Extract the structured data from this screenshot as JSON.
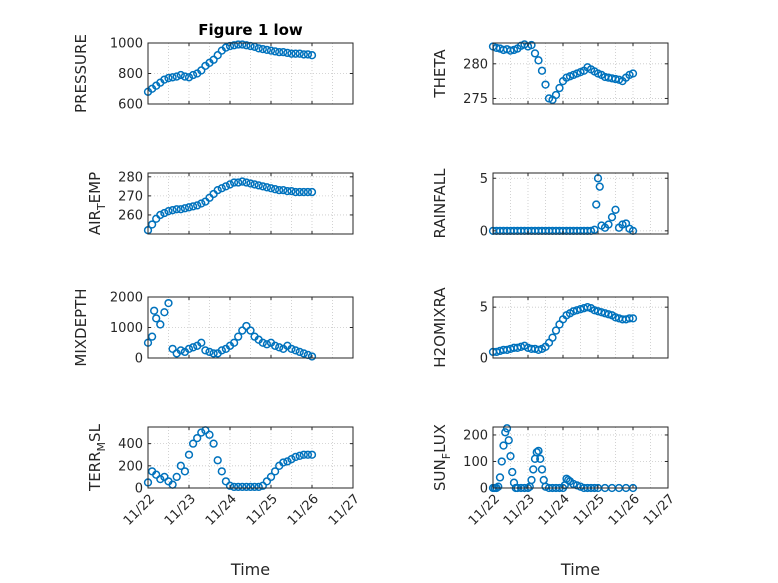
{
  "figure": {
    "title": "Figure 1 low",
    "marker_color": "#0072BD"
  },
  "chart_data": [
    {
      "type": "scatter",
      "title": "Figure 1 low",
      "ylabel": "PRESSURE",
      "ylabel_sub": null,
      "xlim": [
        0,
        5
      ],
      "ylim": [
        600,
        1000
      ],
      "yticks": [
        600,
        800,
        1000
      ],
      "ytick_labels": [
        "600",
        "800",
        "1000"
      ],
      "xticks": [
        0,
        1,
        2,
        3,
        4,
        5
      ],
      "xtick_labels": [],
      "xlabel": "",
      "grid": true,
      "series": [
        {
          "x": [
            0.0,
            0.1,
            0.2,
            0.3,
            0.4,
            0.5,
            0.6,
            0.7,
            0.8,
            0.9,
            1.0,
            1.1,
            1.2,
            1.3,
            1.4,
            1.5,
            1.6,
            1.7,
            1.8,
            1.9,
            2.0,
            2.1,
            2.2,
            2.3,
            2.4,
            2.5,
            2.6,
            2.7,
            2.8,
            2.9,
            3.0,
            3.1,
            3.2,
            3.3,
            3.4,
            3.5,
            3.6,
            3.7,
            3.8,
            3.9,
            4.0
          ],
          "y": [
            680,
            700,
            720,
            740,
            760,
            770,
            775,
            780,
            790,
            780,
            775,
            790,
            800,
            820,
            850,
            870,
            890,
            920,
            950,
            970,
            980,
            985,
            990,
            990,
            985,
            980,
            975,
            965,
            960,
            955,
            950,
            945,
            940,
            940,
            935,
            930,
            930,
            930,
            925,
            925,
            920
          ]
        }
      ]
    },
    {
      "type": "scatter",
      "title": "",
      "ylabel": "THETA",
      "ylabel_sub": null,
      "xlim": [
        0,
        5
      ],
      "ylim": [
        274.2,
        283
      ],
      "yticks": [
        275,
        280
      ],
      "ytick_labels": [
        "275",
        "280"
      ],
      "xticks": [
        0,
        1,
        2,
        3,
        4,
        5
      ],
      "xtick_labels": [],
      "xlabel": "",
      "grid": true,
      "series": [
        {
          "x": [
            0.0,
            0.1,
            0.2,
            0.3,
            0.4,
            0.5,
            0.6,
            0.7,
            0.8,
            0.9,
            1.0,
            1.1,
            1.2,
            1.3,
            1.4,
            1.5,
            1.6,
            1.7,
            1.8,
            1.9,
            2.0,
            2.1,
            2.2,
            2.3,
            2.4,
            2.5,
            2.6,
            2.7,
            2.8,
            2.9,
            3.0,
            3.1,
            3.2,
            3.3,
            3.4,
            3.5,
            3.6,
            3.7,
            3.8,
            3.9,
            4.0
          ],
          "y": [
            282.5,
            282.3,
            282.2,
            282.0,
            282.1,
            281.9,
            282.0,
            282.2,
            282.6,
            282.8,
            282.5,
            282.7,
            281.5,
            280.5,
            279.0,
            277.0,
            275.0,
            274.8,
            275.5,
            276.5,
            277.5,
            278.0,
            278.2,
            278.4,
            278.6,
            278.8,
            279.0,
            279.5,
            279.2,
            278.9,
            278.6,
            278.4,
            278.1,
            278.0,
            277.9,
            277.8,
            277.7,
            277.5,
            278.0,
            278.4,
            278.6
          ]
        }
      ]
    },
    {
      "type": "scatter",
      "title": "",
      "ylabel": "AIR",
      "ylabel_sub": "T",
      "ylabel_rest": "EMP",
      "xlim": [
        0,
        5
      ],
      "ylim": [
        250,
        282
      ],
      "yticks": [
        260,
        270,
        280
      ],
      "ytick_labels": [
        "260",
        "270",
        "280"
      ],
      "xticks": [
        0,
        1,
        2,
        3,
        4,
        5
      ],
      "xtick_labels": [],
      "xlabel": "",
      "grid": true,
      "series": [
        {
          "x": [
            0.0,
            0.1,
            0.2,
            0.3,
            0.4,
            0.5,
            0.6,
            0.7,
            0.8,
            0.9,
            1.0,
            1.1,
            1.2,
            1.3,
            1.4,
            1.5,
            1.6,
            1.7,
            1.8,
            1.9,
            2.0,
            2.1,
            2.2,
            2.3,
            2.4,
            2.5,
            2.6,
            2.7,
            2.8,
            2.9,
            3.0,
            3.1,
            3.2,
            3.3,
            3.4,
            3.5,
            3.6,
            3.7,
            3.8,
            3.9,
            4.0
          ],
          "y": [
            252,
            255,
            258,
            260,
            261,
            262,
            262.5,
            263,
            263,
            263.5,
            264,
            264.5,
            265,
            266,
            267,
            269,
            271,
            273,
            274,
            275,
            276,
            277,
            277,
            277.5,
            277,
            276.5,
            276,
            275.5,
            275,
            274.5,
            274,
            273.5,
            273,
            273,
            272.5,
            272.5,
            272,
            272,
            272,
            272,
            272
          ]
        }
      ]
    },
    {
      "type": "scatter",
      "title": "",
      "ylabel": "RAINFALL",
      "ylabel_sub": null,
      "xlim": [
        0,
        5
      ],
      "ylim": [
        -0.3,
        5.5
      ],
      "yticks": [
        0,
        5
      ],
      "ytick_labels": [
        "0",
        "5"
      ],
      "xticks": [
        0,
        1,
        2,
        3,
        4,
        5
      ],
      "xtick_labels": [],
      "xlabel": "",
      "grid": true,
      "series": [
        {
          "x": [
            0.0,
            0.1,
            0.2,
            0.3,
            0.4,
            0.5,
            0.6,
            0.7,
            0.8,
            0.9,
            1.0,
            1.1,
            1.2,
            1.3,
            1.4,
            1.5,
            1.6,
            1.7,
            1.8,
            1.9,
            2.0,
            2.1,
            2.2,
            2.3,
            2.4,
            2.5,
            2.6,
            2.7,
            2.8,
            2.9,
            2.95,
            3.0,
            3.05,
            3.1,
            3.2,
            3.3,
            3.4,
            3.5,
            3.6,
            3.7,
            3.8,
            3.9,
            4.0
          ],
          "y": [
            0,
            0,
            0,
            0,
            0,
            0,
            0,
            0,
            0,
            0,
            0,
            0,
            0,
            0,
            0,
            0,
            0,
            0,
            0,
            0,
            0,
            0,
            0,
            0,
            0,
            0,
            0,
            0,
            0,
            0.1,
            2.5,
            5.0,
            4.2,
            0.5,
            0.3,
            0.6,
            1.3,
            2.0,
            0.3,
            0.6,
            0.7,
            0.2,
            0
          ]
        }
      ]
    },
    {
      "type": "scatter",
      "title": "",
      "ylabel": "MIXDEPTH",
      "ylabel_sub": null,
      "xlim": [
        0,
        5
      ],
      "ylim": [
        0,
        2000
      ],
      "yticks": [
        0,
        1000,
        2000
      ],
      "ytick_labels": [
        "0",
        "1000",
        "2000"
      ],
      "xticks": [
        0,
        1,
        2,
        3,
        4,
        5
      ],
      "xtick_labels": [],
      "xlabel": "",
      "grid": true,
      "series": [
        {
          "x": [
            0.0,
            0.1,
            0.15,
            0.2,
            0.3,
            0.4,
            0.5,
            0.6,
            0.7,
            0.8,
            0.9,
            1.0,
            1.1,
            1.2,
            1.3,
            1.4,
            1.5,
            1.6,
            1.7,
            1.8,
            1.9,
            2.0,
            2.1,
            2.2,
            2.3,
            2.4,
            2.5,
            2.6,
            2.7,
            2.8,
            2.9,
            3.0,
            3.1,
            3.2,
            3.3,
            3.4,
            3.5,
            3.6,
            3.7,
            3.8,
            3.9,
            4.0
          ],
          "y": [
            500,
            700,
            1550,
            1300,
            1100,
            1500,
            1800,
            300,
            150,
            250,
            200,
            300,
            350,
            400,
            500,
            250,
            200,
            150,
            150,
            250,
            300,
            400,
            500,
            700,
            900,
            1050,
            900,
            700,
            600,
            500,
            450,
            500,
            400,
            350,
            300,
            400,
            300,
            250,
            200,
            150,
            100,
            50
          ]
        }
      ]
    },
    {
      "type": "scatter",
      "title": "",
      "ylabel": "H2OMIXRA",
      "ylabel_sub": null,
      "xlim": [
        0,
        5
      ],
      "ylim": [
        0,
        6
      ],
      "yticks": [
        0,
        5
      ],
      "ytick_labels": [
        "0",
        "5"
      ],
      "xticks": [
        0,
        1,
        2,
        3,
        4,
        5
      ],
      "xtick_labels": [],
      "xlabel": "",
      "grid": true,
      "series": [
        {
          "x": [
            0.0,
            0.1,
            0.2,
            0.3,
            0.4,
            0.5,
            0.6,
            0.7,
            0.8,
            0.9,
            1.0,
            1.1,
            1.2,
            1.3,
            1.4,
            1.5,
            1.6,
            1.7,
            1.8,
            1.9,
            2.0,
            2.1,
            2.2,
            2.3,
            2.4,
            2.5,
            2.6,
            2.7,
            2.8,
            2.9,
            3.0,
            3.1,
            3.2,
            3.3,
            3.4,
            3.5,
            3.6,
            3.7,
            3.8,
            3.9,
            4.0
          ],
          "y": [
            0.6,
            0.6,
            0.7,
            0.8,
            0.8,
            0.9,
            1.0,
            1.0,
            1.1,
            1.2,
            1.0,
            0.9,
            0.9,
            0.8,
            0.9,
            1.1,
            1.5,
            2.0,
            2.7,
            3.3,
            3.8,
            4.2,
            4.4,
            4.6,
            4.7,
            4.8,
            4.9,
            5.0,
            4.9,
            4.7,
            4.6,
            4.5,
            4.4,
            4.3,
            4.2,
            4.0,
            3.9,
            3.8,
            3.8,
            3.9,
            3.9
          ]
        }
      ]
    },
    {
      "type": "scatter",
      "title": "",
      "ylabel": "TERR",
      "ylabel_sub": "M",
      "ylabel_rest": "SL",
      "xlim": [
        0,
        5
      ],
      "ylim": [
        0,
        550
      ],
      "yticks": [
        0,
        200,
        400
      ],
      "ytick_labels": [
        "0",
        "200",
        "400"
      ],
      "xticks": [
        0,
        1,
        2,
        3,
        4,
        5
      ],
      "xtick_labels": [
        "11/22",
        "11/23",
        "11/24",
        "11/25",
        "11/26",
        "11/27"
      ],
      "xlabel": "Time",
      "grid": true,
      "series": [
        {
          "x": [
            0.0,
            0.1,
            0.2,
            0.3,
            0.4,
            0.5,
            0.6,
            0.7,
            0.8,
            0.9,
            1.0,
            1.1,
            1.2,
            1.3,
            1.4,
            1.5,
            1.6,
            1.7,
            1.8,
            1.9,
            2.0,
            2.1,
            2.2,
            2.3,
            2.4,
            2.5,
            2.6,
            2.7,
            2.8,
            2.9,
            3.0,
            3.1,
            3.2,
            3.3,
            3.4,
            3.5,
            3.6,
            3.7,
            3.8,
            3.9,
            4.0
          ],
          "y": [
            50,
            150,
            120,
            80,
            100,
            60,
            30,
            100,
            200,
            150,
            300,
            400,
            450,
            500,
            520,
            480,
            400,
            250,
            150,
            60,
            20,
            10,
            10,
            10,
            10,
            10,
            10,
            10,
            20,
            60,
            100,
            150,
            200,
            230,
            240,
            260,
            280,
            290,
            300,
            300,
            300
          ]
        }
      ]
    },
    {
      "type": "scatter",
      "title": "",
      "ylabel": "SUN",
      "ylabel_sub": "F",
      "ylabel_rest": "LUX",
      "xlim": [
        0,
        5
      ],
      "ylim": [
        0,
        230
      ],
      "yticks": [
        0,
        100,
        200
      ],
      "ytick_labels": [
        "0",
        "100",
        "200"
      ],
      "xticks": [
        0,
        1,
        2,
        3,
        4,
        5
      ],
      "xtick_labels": [
        "11/22",
        "11/23",
        "11/24",
        "11/25",
        "11/26",
        "11/27"
      ],
      "xlabel": "Time",
      "grid": true,
      "series": [
        {
          "x": [
            0.0,
            0.05,
            0.1,
            0.15,
            0.2,
            0.25,
            0.3,
            0.35,
            0.4,
            0.45,
            0.5,
            0.55,
            0.6,
            0.65,
            0.7,
            0.8,
            0.9,
            1.0,
            1.05,
            1.1,
            1.15,
            1.2,
            1.25,
            1.3,
            1.35,
            1.4,
            1.45,
            1.5,
            1.6,
            1.7,
            1.8,
            1.9,
            2.0,
            2.05,
            2.1,
            2.15,
            2.2,
            2.3,
            2.4,
            2.5,
            2.6,
            2.7,
            2.8,
            2.9,
            3.0,
            3.2,
            3.4,
            3.6,
            3.8,
            4.0
          ],
          "y": [
            0,
            0,
            0,
            5,
            40,
            100,
            160,
            210,
            225,
            180,
            120,
            60,
            20,
            0,
            0,
            0,
            0,
            0,
            5,
            30,
            70,
            110,
            135,
            140,
            110,
            70,
            30,
            5,
            0,
            0,
            0,
            0,
            0,
            10,
            35,
            30,
            25,
            15,
            10,
            5,
            0,
            0,
            0,
            0,
            0,
            0,
            0,
            0,
            0,
            0
          ]
        }
      ]
    }
  ]
}
